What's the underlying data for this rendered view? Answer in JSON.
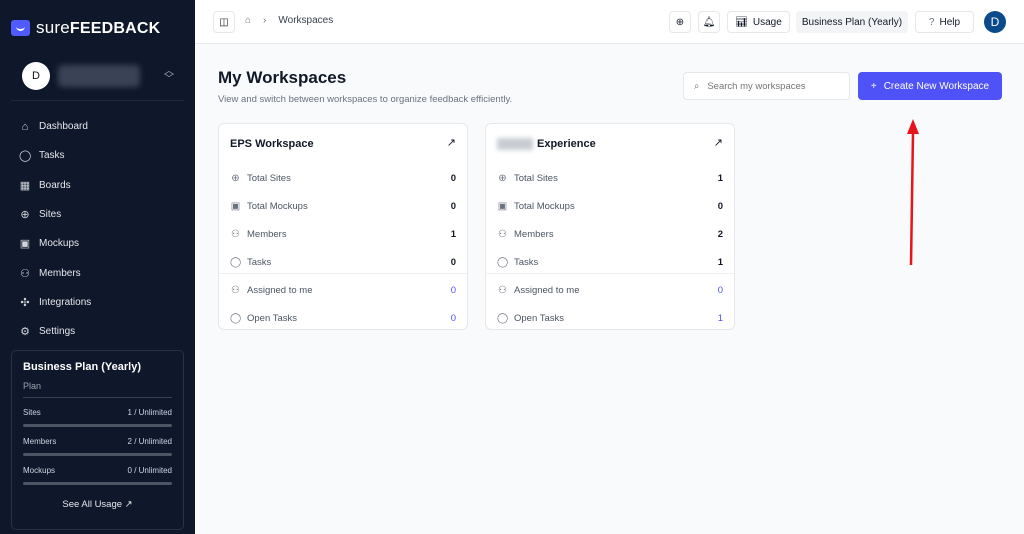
{
  "brand": {
    "name_light": "sure",
    "name_bold": "FEEDBACK"
  },
  "user": {
    "initial": "D"
  },
  "sidebar": {
    "items": [
      {
        "label": "Dashboard",
        "icon": "home-icon"
      },
      {
        "label": "Tasks",
        "icon": "chat-icon"
      },
      {
        "label": "Boards",
        "icon": "grid-icon"
      },
      {
        "label": "Sites",
        "icon": "globe-icon"
      },
      {
        "label": "Mockups",
        "icon": "image-icon"
      },
      {
        "label": "Members",
        "icon": "users-icon"
      },
      {
        "label": "Integrations",
        "icon": "puzzle-icon"
      },
      {
        "label": "Settings",
        "icon": "gear-icon"
      }
    ],
    "plan": {
      "title": "Business Plan (Yearly)",
      "subtitle": "Plan",
      "usage": [
        {
          "label": "Sites",
          "value": "1 / Unlimited"
        },
        {
          "label": "Members",
          "value": "2 / Unlimited"
        },
        {
          "label": "Mockups",
          "value": "0 / Unlimited"
        }
      ],
      "see_all": "See All Usage ↗"
    }
  },
  "header": {
    "breadcrumb": "Workspaces",
    "usage": "Usage",
    "plan": "Business Plan (Yearly)",
    "help": "Help",
    "avatar": "D"
  },
  "main": {
    "title": "My Workspaces",
    "subtitle": "View and switch between workspaces to organize feedback efficiently.",
    "search_placeholder": "Search my workspaces",
    "create": "Create New Workspace",
    "cards": [
      {
        "title": "EPS Workspace",
        "rows": [
          {
            "label": "Total Sites",
            "value": "0"
          },
          {
            "label": "Total Mockups",
            "value": "0"
          },
          {
            "label": "Members",
            "value": "1"
          },
          {
            "label": "Tasks",
            "value": "0"
          },
          {
            "label": "Assigned to me",
            "value": "0"
          },
          {
            "label": "Open Tasks",
            "value": "0"
          }
        ]
      },
      {
        "title": "Experience",
        "rows": [
          {
            "label": "Total Sites",
            "value": "1"
          },
          {
            "label": "Total Mockups",
            "value": "0"
          },
          {
            "label": "Members",
            "value": "2"
          },
          {
            "label": "Tasks",
            "value": "1"
          },
          {
            "label": "Assigned to me",
            "value": "0"
          },
          {
            "label": "Open Tasks",
            "value": "1"
          }
        ]
      }
    ]
  },
  "colors": {
    "accent": "#4f52f7",
    "sidebar": "#0f172a",
    "annotation": "#e8141b"
  }
}
